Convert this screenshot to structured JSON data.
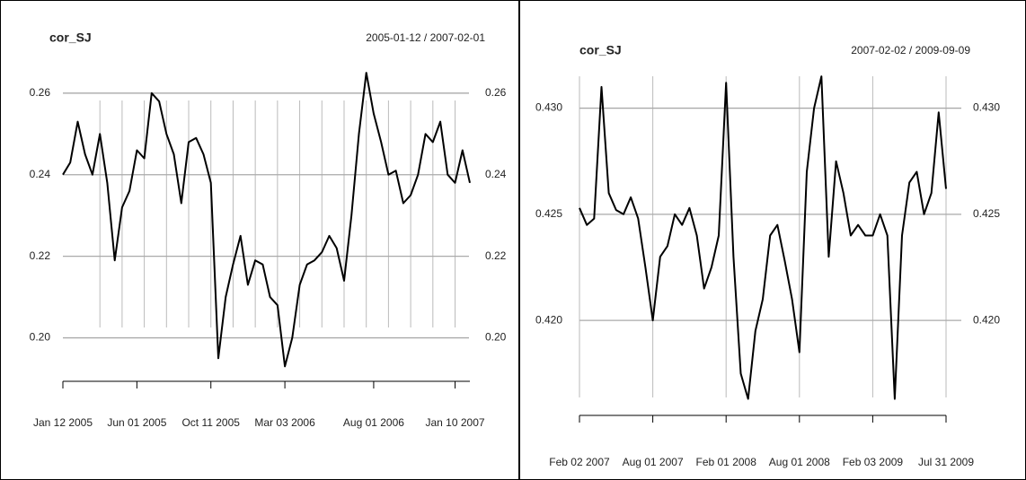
{
  "chart_data": [
    {
      "type": "line",
      "title": "cor_SJ",
      "subtitle": "2005-01-12 / 2007-02-01",
      "color": "#000000",
      "grid": true,
      "categories": [
        "Jan 12 2005",
        null,
        null,
        null,
        null,
        null,
        null,
        null,
        null,
        null,
        "Jun 01 2005",
        null,
        null,
        null,
        null,
        null,
        null,
        null,
        null,
        null,
        "Oct 11 2005",
        null,
        null,
        null,
        null,
        null,
        null,
        null,
        null,
        null,
        "Mar 03 2006",
        null,
        null,
        null,
        null,
        null,
        null,
        null,
        null,
        null,
        null,
        null,
        "Aug 01 2006",
        null,
        null,
        null,
        null,
        null,
        null,
        null,
        null,
        null,
        null,
        "Jan 10 2007",
        null,
        null
      ],
      "values": [
        0.24,
        0.243,
        0.253,
        0.245,
        0.24,
        0.25,
        0.238,
        0.219,
        0.232,
        0.236,
        0.246,
        0.244,
        0.26,
        0.258,
        0.25,
        0.245,
        0.233,
        0.248,
        0.249,
        0.245,
        0.238,
        0.195,
        0.21,
        0.218,
        0.225,
        0.213,
        0.219,
        0.218,
        0.21,
        0.208,
        0.193,
        0.2,
        0.213,
        0.218,
        0.219,
        0.221,
        0.225,
        0.222,
        0.214,
        0.23,
        0.25,
        0.265,
        0.255,
        0.248,
        0.24,
        0.241,
        0.233,
        0.235,
        0.24,
        0.25,
        0.248,
        0.253,
        0.24,
        0.238,
        0.246,
        0.238
      ],
      "ylim": [
        0.19,
        0.267
      ],
      "yticks": [
        {
          "value": 0.2,
          "label": "0.20"
        },
        0.22,
        0.24,
        0.26
      ]
    },
    {
      "type": "line",
      "title": "cor_SJ",
      "subtitle": "2007-02-02 / 2009-09-09",
      "color": "#000000",
      "grid": true,
      "categories": [
        "Feb 02 2007",
        null,
        null,
        null,
        null,
        null,
        null,
        null,
        null,
        null,
        "Aug 01 2007",
        null,
        null,
        null,
        null,
        null,
        null,
        null,
        null,
        null,
        "Feb 01 2008",
        null,
        null,
        null,
        null,
        null,
        null,
        null,
        null,
        null,
        "Aug 01 2008",
        null,
        null,
        null,
        null,
        null,
        null,
        null,
        null,
        null,
        "Feb 03 2009",
        null,
        null,
        null,
        null,
        null,
        null,
        null,
        null,
        null,
        "Jul 31 2009"
      ],
      "values": [
        0.4253,
        0.4245,
        0.4248,
        0.431,
        0.426,
        0.4252,
        0.425,
        0.4258,
        0.4248,
        0.4225,
        0.42,
        0.423,
        0.4235,
        0.425,
        0.4245,
        0.4253,
        0.424,
        0.4215,
        0.4225,
        0.424,
        0.4312,
        0.423,
        0.4175,
        0.4163,
        0.4195,
        0.421,
        0.424,
        0.4245,
        0.4228,
        0.421,
        0.4185,
        0.427,
        0.43,
        0.4315,
        0.423,
        0.4275,
        0.426,
        0.424,
        0.4245,
        0.424,
        0.424,
        0.425,
        0.424,
        0.4163,
        0.424,
        0.4265,
        0.427,
        0.425,
        0.426,
        0.4298,
        0.4262
      ],
      "ylim": [
        0.4162,
        0.4318
      ],
      "yticks": [
        {
          "value": 0.42,
          "label": "0.420"
        },
        {
          "value": 0.425,
          "label": "0.425"
        },
        {
          "value": 0.43,
          "label": "0.430"
        }
      ]
    }
  ]
}
